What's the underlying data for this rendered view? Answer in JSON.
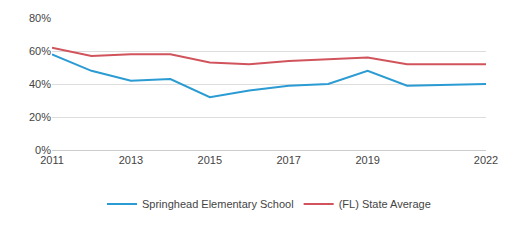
{
  "chart_data": {
    "type": "line",
    "x": [
      2011,
      2012,
      2013,
      2014,
      2015,
      2016,
      2017,
      2018,
      2019,
      2020,
      2022
    ],
    "series": [
      {
        "name": "Springhead Elementary School",
        "color": "#2b9bd3",
        "values": [
          58,
          48,
          42,
          43,
          32,
          36,
          39,
          40,
          48,
          39,
          40
        ]
      },
      {
        "name": "(FL) State Average",
        "color": "#d1545c",
        "values": [
          62,
          57,
          58,
          58,
          53,
          52,
          54,
          55,
          56,
          52,
          52
        ]
      }
    ],
    "xlim": [
      2011,
      2022
    ],
    "xticks": [
      2011,
      2013,
      2015,
      2017,
      2019,
      2022
    ],
    "ylim": [
      0,
      80
    ],
    "yticks": [
      {
        "value": 0,
        "label": "0%"
      },
      {
        "value": 20,
        "label": "20%"
      },
      {
        "value": 40,
        "label": "40%"
      },
      {
        "value": 60,
        "label": "60%"
      },
      {
        "value": 80,
        "label": "80%"
      }
    ],
    "grid": true,
    "legend": "bottom"
  }
}
